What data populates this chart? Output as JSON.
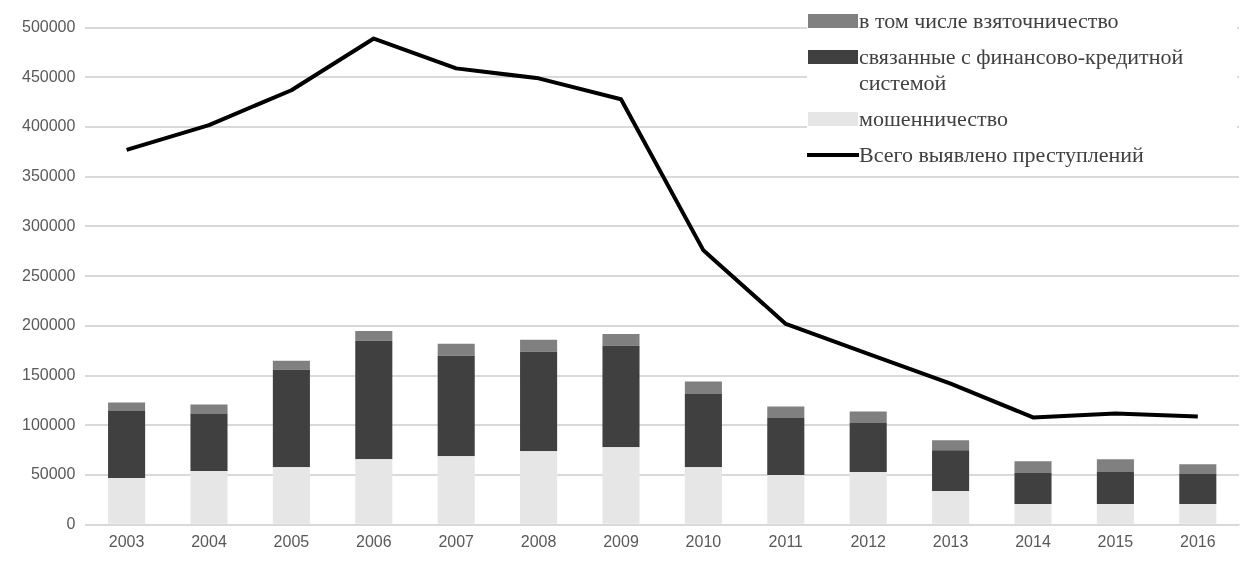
{
  "chart_data": {
    "type": "bar",
    "stacked": true,
    "categories": [
      "2003",
      "2004",
      "2005",
      "2006",
      "2007",
      "2008",
      "2009",
      "2010",
      "2011",
      "2012",
      "2013",
      "2014",
      "2015",
      "2016"
    ],
    "series": [
      {
        "name": "мошенничество",
        "color": "#e6e6e6",
        "values": [
          47000,
          54000,
          58000,
          66000,
          69000,
          74000,
          78000,
          58000,
          50000,
          53000,
          34000,
          21000,
          21000,
          21000
        ]
      },
      {
        "name": "связанные с финансово-кредитной системой",
        "color": "#404040",
        "values": [
          68000,
          58000,
          98000,
          119000,
          101000,
          100000,
          102000,
          74000,
          58000,
          50000,
          41000,
          31000,
          32000,
          30000
        ]
      },
      {
        "name": " в том числе взяточничество",
        "color": "#808080",
        "values": [
          8000,
          9000,
          9000,
          10000,
          12000,
          12000,
          12000,
          12000,
          11000,
          11000,
          10000,
          12000,
          13000,
          10000
        ]
      },
      {
        "name": "Всего выявлено преступлений",
        "type": "line",
        "color": "#000000",
        "values": [
          377000,
          402000,
          437000,
          489000,
          459000,
          449000,
          428000,
          276000,
          202000,
          172000,
          142000,
          108000,
          112000,
          109000
        ]
      }
    ],
    "ylim": [
      0,
      500000
    ],
    "yticks": [
      0,
      50000,
      100000,
      150000,
      200000,
      250000,
      300000,
      350000,
      400000,
      450000,
      500000
    ],
    "grid": "y",
    "legend": "top right",
    "marker": "none",
    "line_style": "solid"
  }
}
